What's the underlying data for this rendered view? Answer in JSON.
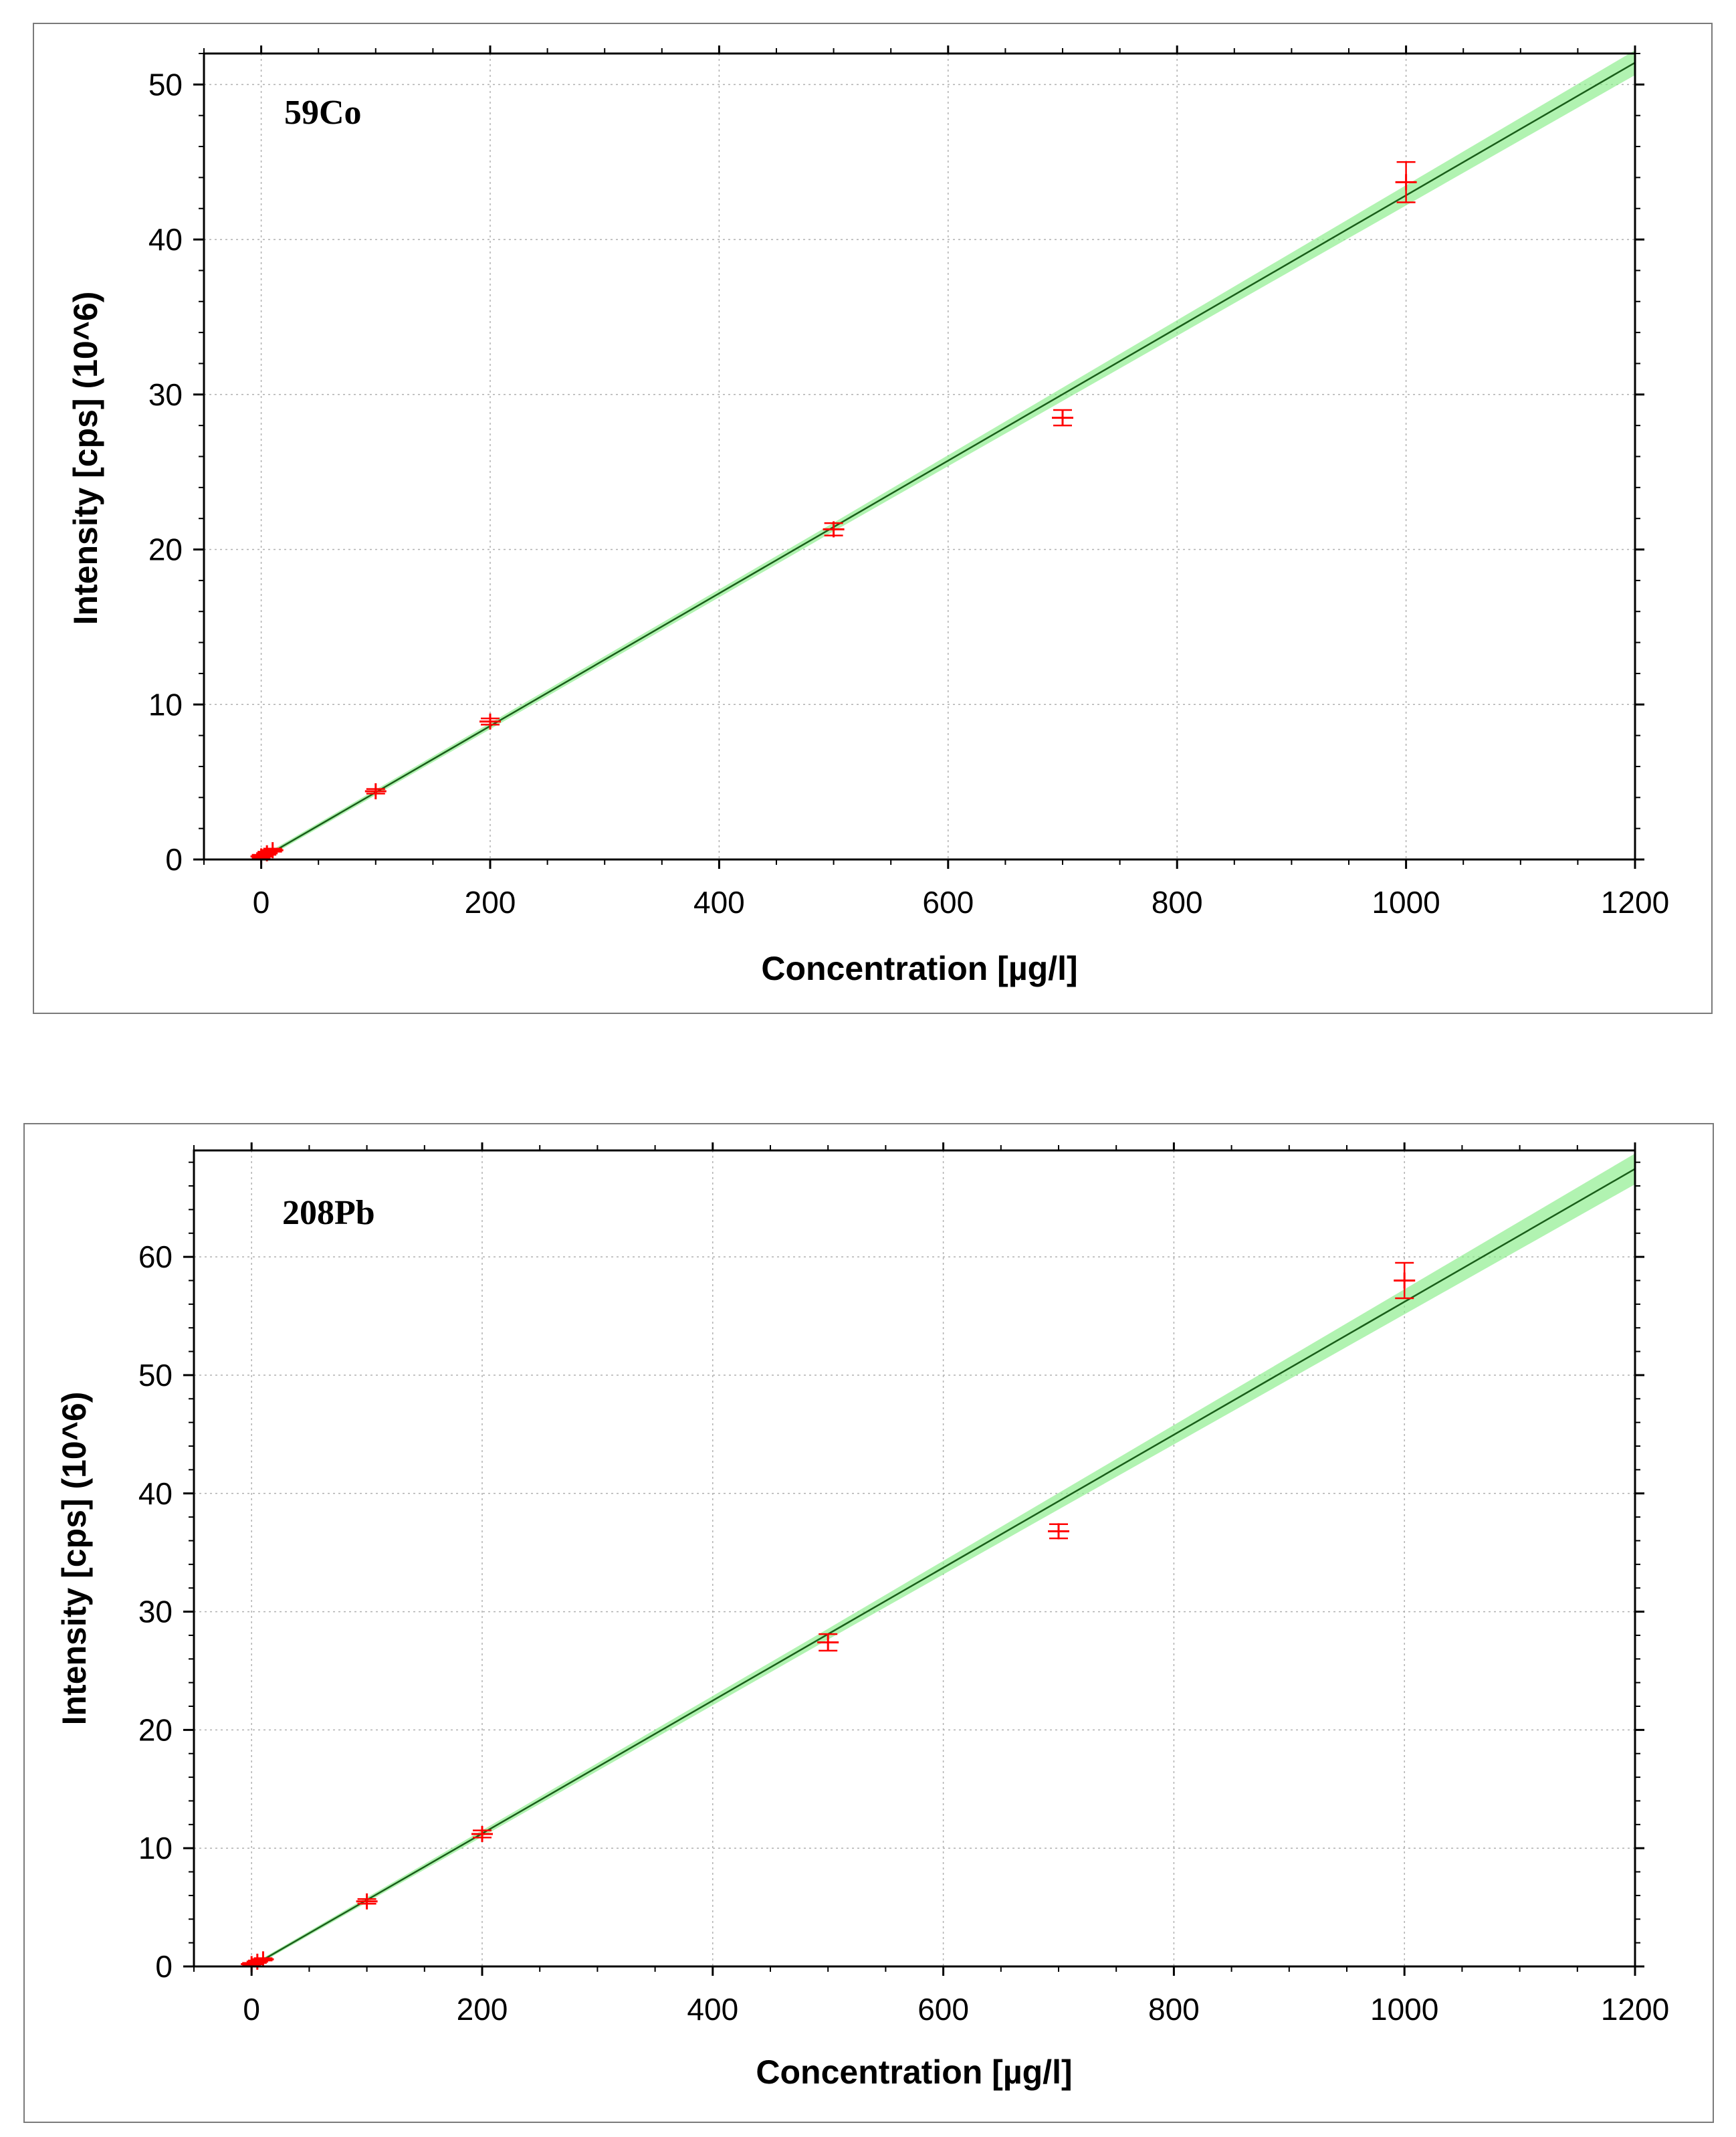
{
  "chart_data": [
    {
      "type": "scatter",
      "title": "59Co",
      "xlabel": "Concentration [µg/l]",
      "ylabel": "Intensity [cps] (10^6)",
      "xlim": [
        -50,
        1200
      ],
      "ylim": [
        0,
        52
      ],
      "xticks": [
        0,
        200,
        400,
        600,
        800,
        1000,
        1200
      ],
      "yticks": [
        0,
        10,
        20,
        30,
        40,
        50
      ],
      "grid": true,
      "colors": {
        "points": "#ff0000",
        "fit_line": "#1a5e1a",
        "confidence_band": "#90ee90"
      },
      "points": [
        {
          "x": 0,
          "y": 0.2,
          "err": 0.1
        },
        {
          "x": 5,
          "y": 0.4,
          "err": 0.1
        },
        {
          "x": 10,
          "y": 0.6,
          "err": 0.1
        },
        {
          "x": 100,
          "y": 4.4,
          "err": 0.15
        },
        {
          "x": 200,
          "y": 8.9,
          "err": 0.2
        },
        {
          "x": 500,
          "y": 21.3,
          "err": 0.4
        },
        {
          "x": 700,
          "y": 28.5,
          "err": 0.5
        },
        {
          "x": 1000,
          "y": 43.7,
          "err": 1.3
        }
      ],
      "fit": {
        "slope": 0.0428,
        "intercept": 0.05,
        "band_halfwidth_at_max": 0.8
      }
    },
    {
      "type": "scatter",
      "title": "208Pb",
      "xlabel": "Concentration [µg/l]",
      "ylabel": "Intensity [cps] (10^6)",
      "xlim": [
        -50,
        1200
      ],
      "ylim": [
        0,
        69
      ],
      "xticks": [
        0,
        200,
        400,
        600,
        800,
        1000,
        1200
      ],
      "yticks": [
        0,
        10,
        20,
        30,
        40,
        50,
        60
      ],
      "grid": true,
      "colors": {
        "points": "#ff0000",
        "fit_line": "#1a5e1a",
        "confidence_band": "#90ee90"
      },
      "points": [
        {
          "x": 0,
          "y": 0.2,
          "err": 0.1
        },
        {
          "x": 5,
          "y": 0.4,
          "err": 0.1
        },
        {
          "x": 10,
          "y": 0.6,
          "err": 0.1
        },
        {
          "x": 100,
          "y": 5.5,
          "err": 0.2
        },
        {
          "x": 200,
          "y": 11.2,
          "err": 0.3
        },
        {
          "x": 500,
          "y": 27.4,
          "err": 0.7
        },
        {
          "x": 700,
          "y": 36.8,
          "err": 0.6
        },
        {
          "x": 1000,
          "y": 58.0,
          "err": 1.5
        }
      ],
      "fit": {
        "slope": 0.0562,
        "intercept": 0.0,
        "band_halfwidth_at_max": 1.3
      }
    }
  ]
}
